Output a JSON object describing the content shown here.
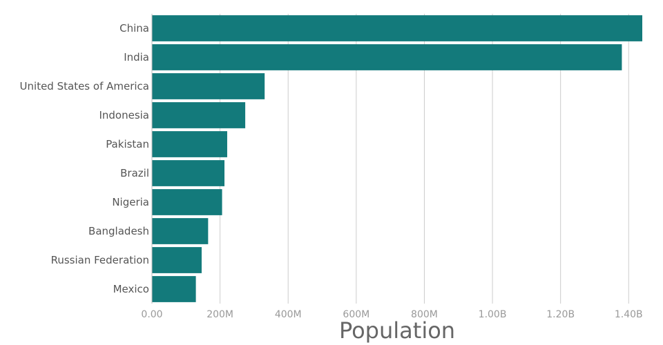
{
  "chart_data": {
    "type": "bar",
    "orientation": "horizontal",
    "categories": [
      "China",
      "India",
      "United States of America",
      "Indonesia",
      "Pakistan",
      "Brazil",
      "Nigeria",
      "Bangladesh",
      "Russian Federation",
      "Mexico"
    ],
    "values": [
      1440000000,
      1380000000,
      331000000,
      274000000,
      221000000,
      213000000,
      206000000,
      165000000,
      146000000,
      129000000
    ],
    "xlabel": "Population",
    "xlim": [
      0,
      1440000000
    ],
    "xticks": [
      0,
      200000000,
      400000000,
      600000000,
      800000000,
      1000000000,
      1200000000,
      1400000000
    ],
    "xtick_labels": [
      "0.00",
      "200M",
      "400M",
      "600M",
      "800M",
      "1.00B",
      "1.20B",
      "1.40B"
    ],
    "grid": true,
    "bar_color": "#137A7B"
  }
}
